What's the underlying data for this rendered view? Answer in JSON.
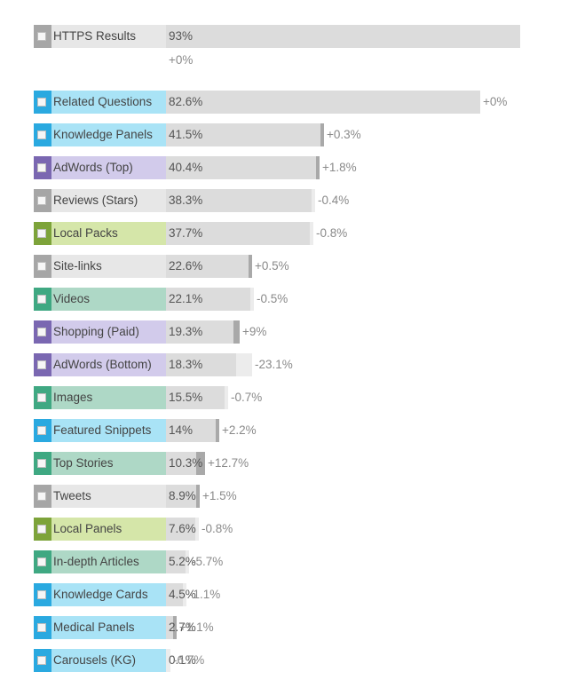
{
  "colors": {
    "bar": "#dcdcdc",
    "delta_up": "#a9a9a9",
    "delta_down": "#ececec",
    "group_gray": {
      "accent": "#a6a6a6",
      "fill": "#e7e7e7"
    },
    "group_blue": {
      "accent": "#2aa9e0",
      "fill": "#a9e3f6"
    },
    "group_purple": {
      "accent": "#7a67b1",
      "fill": "#d2cbeb"
    },
    "group_green": {
      "accent": "#7da33a",
      "fill": "#d5e6a9"
    },
    "group_teal": {
      "accent": "#3fa882",
      "fill": "#aed8c6"
    }
  },
  "chart_data": {
    "type": "bar",
    "orientation": "horizontal",
    "xlim": [
      0,
      100
    ],
    "unit": "%",
    "items": [
      {
        "label": "HTTPS Results",
        "value": 93,
        "value_text": "93%",
        "delta": 0,
        "delta_text": "+0%",
        "group": "gray",
        "delta_on_new_line": true
      },
      {
        "label": "Related Questions",
        "value": 82.6,
        "value_text": "82.6%",
        "delta": 0,
        "delta_text": "+0%",
        "group": "blue"
      },
      {
        "label": "Knowledge Panels",
        "value": 41.5,
        "value_text": "41.5%",
        "delta": 0.3,
        "delta_text": "+0.3%",
        "group": "blue"
      },
      {
        "label": "AdWords (Top)",
        "value": 40.4,
        "value_text": "40.4%",
        "delta": 1.8,
        "delta_text": "+1.8%",
        "group": "purple"
      },
      {
        "label": "Reviews (Stars)",
        "value": 38.3,
        "value_text": "38.3%",
        "delta": -0.4,
        "delta_text": "-0.4%",
        "group": "gray"
      },
      {
        "label": "Local Packs",
        "value": 37.7,
        "value_text": "37.7%",
        "delta": -0.8,
        "delta_text": "-0.8%",
        "group": "green"
      },
      {
        "label": "Site-links",
        "value": 22.6,
        "value_text": "22.6%",
        "delta": 0.5,
        "delta_text": "+0.5%",
        "group": "gray"
      },
      {
        "label": "Videos",
        "value": 22.1,
        "value_text": "22.1%",
        "delta": -0.5,
        "delta_text": "-0.5%",
        "group": "teal"
      },
      {
        "label": "Shopping (Paid)",
        "value": 19.3,
        "value_text": "19.3%",
        "delta": 9,
        "delta_text": "+9%",
        "group": "purple"
      },
      {
        "label": "AdWords (Bottom)",
        "value": 18.3,
        "value_text": "18.3%",
        "delta": -23.1,
        "delta_text": "-23.1%",
        "group": "purple"
      },
      {
        "label": "Images",
        "value": 15.5,
        "value_text": "15.5%",
        "delta": -0.7,
        "delta_text": "-0.7%",
        "group": "teal"
      },
      {
        "label": "Featured Snippets",
        "value": 14,
        "value_text": "14%",
        "delta": 2.2,
        "delta_text": "+2.2%",
        "group": "blue"
      },
      {
        "label": "Top Stories",
        "value": 10.3,
        "value_text": "10.3%",
        "delta": 12.7,
        "delta_text": "+12.7%",
        "group": "teal"
      },
      {
        "label": "Tweets",
        "value": 8.9,
        "value_text": "8.9%",
        "delta": 1.5,
        "delta_text": "+1.5%",
        "group": "gray"
      },
      {
        "label": "Local Panels",
        "value": 7.6,
        "value_text": "7.6%",
        "delta": -0.8,
        "delta_text": "-0.8%",
        "group": "green"
      },
      {
        "label": "In-depth Articles",
        "value": 5.2,
        "value_text": "5.2%",
        "delta": -5.7,
        "delta_text": "-5.7%",
        "group": "teal"
      },
      {
        "label": "Knowledge Cards",
        "value": 4.5,
        "value_text": "4.5%",
        "delta": -1.1,
        "delta_text": "-1.1%",
        "group": "blue"
      },
      {
        "label": "Medical Panels",
        "value": 2.7,
        "value_text": "2.7%",
        "delta": 1.1,
        "delta_text": "+1.1%",
        "group": "blue"
      },
      {
        "label": "Carousels (KG)",
        "value": 0.1,
        "value_text": "0.1%",
        "delta": -6.7,
        "delta_text": "-6.7%",
        "group": "blue"
      }
    ]
  }
}
